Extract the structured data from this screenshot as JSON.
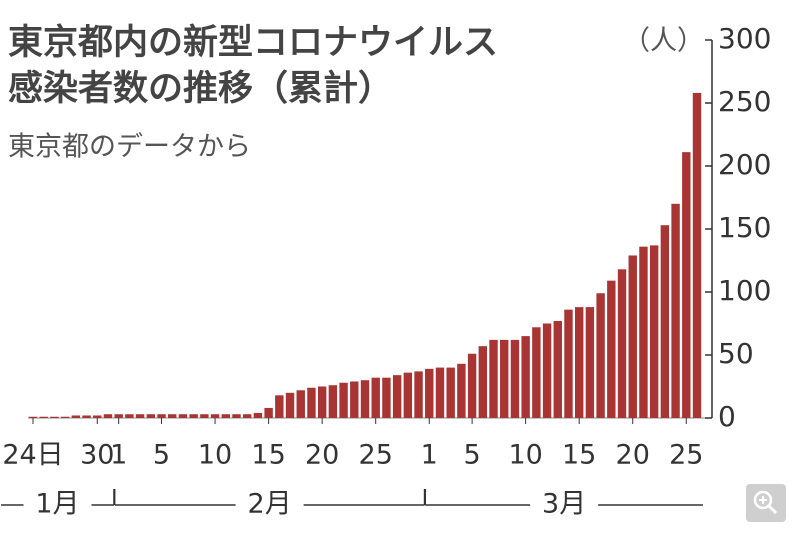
{
  "chart_data": {
    "type": "bar",
    "title": [
      "東京都内の新型コロナウイルス",
      "感染者数の推移（累計）"
    ],
    "subtitle": "東京都のデータから",
    "y_unit": "（人）",
    "categories": [
      "24日",
      null,
      null,
      null,
      null,
      null,
      "30",
      null,
      "1",
      null,
      null,
      null,
      "5",
      null,
      null,
      null,
      null,
      "10",
      null,
      null,
      null,
      null,
      "15",
      null,
      null,
      null,
      null,
      "20",
      null,
      null,
      null,
      null,
      "25",
      null,
      null,
      null,
      null,
      "1",
      null,
      null,
      null,
      "5",
      null,
      null,
      null,
      null,
      "10",
      null,
      null,
      null,
      null,
      "15",
      null,
      null,
      null,
      null,
      "20",
      null,
      null,
      null,
      null,
      "25",
      null
    ],
    "values": [
      1,
      1,
      1,
      1,
      2,
      2,
      2,
      3,
      3,
      3,
      3,
      3,
      3,
      3,
      3,
      3,
      3,
      3,
      3,
      3,
      3,
      4,
      8,
      18,
      20,
      22,
      24,
      25,
      26,
      28,
      29,
      30,
      32,
      32,
      34,
      36,
      37,
      39,
      40,
      40,
      43,
      51,
      57,
      62,
      62,
      62,
      65,
      72,
      75,
      77,
      86,
      88,
      88,
      99,
      109,
      118,
      129,
      136,
      137,
      153,
      170,
      211,
      258
    ],
    "months": [
      "1月",
      "2月",
      "3月"
    ],
    "color": "#a83434",
    "ylim": [
      0,
      300
    ],
    "yticks": [
      0,
      50,
      100,
      150,
      200,
      250,
      300
    ]
  }
}
